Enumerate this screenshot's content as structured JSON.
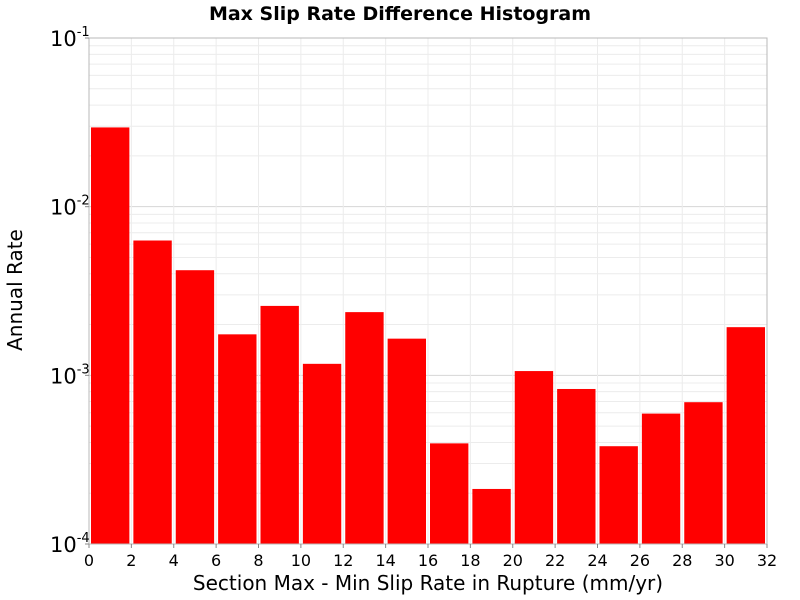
{
  "chart_data": {
    "type": "bar",
    "title": "Max Slip Rate Difference Histogram",
    "xlabel": "Section Max - Min Slip Rate in Rupture (mm/yr)",
    "ylabel": "Annual Rate",
    "x_bin_width": 2,
    "x": [
      1,
      3,
      5,
      7,
      9,
      11,
      13,
      15,
      17,
      19,
      21,
      23,
      25,
      27,
      29,
      31
    ],
    "values": [
      0.0295,
      0.0063,
      0.0042,
      0.00175,
      0.00258,
      0.00117,
      0.00237,
      0.00165,
      0.000395,
      0.000212,
      0.00106,
      0.00083,
      0.00038,
      0.000593,
      0.000693,
      0.00193
    ],
    "xlim": [
      0,
      32
    ],
    "ylim": [
      0.0001,
      0.1
    ],
    "yscale": "log",
    "xticks": [
      "0",
      "2",
      "4",
      "6",
      "8",
      "10",
      "12",
      "14",
      "16",
      "18",
      "20",
      "22",
      "24",
      "26",
      "28",
      "30",
      "32"
    ],
    "yticks": [
      {
        "value": 0.1,
        "base": "10",
        "exp": "-1"
      },
      {
        "value": 0.01,
        "base": "10",
        "exp": "-2"
      },
      {
        "value": 0.001,
        "base": "10",
        "exp": "-3"
      },
      {
        "value": 0.0001,
        "base": "10",
        "exp": "-4"
      }
    ],
    "bar_color": "#ff0000",
    "grid": true,
    "legend": "none"
  }
}
